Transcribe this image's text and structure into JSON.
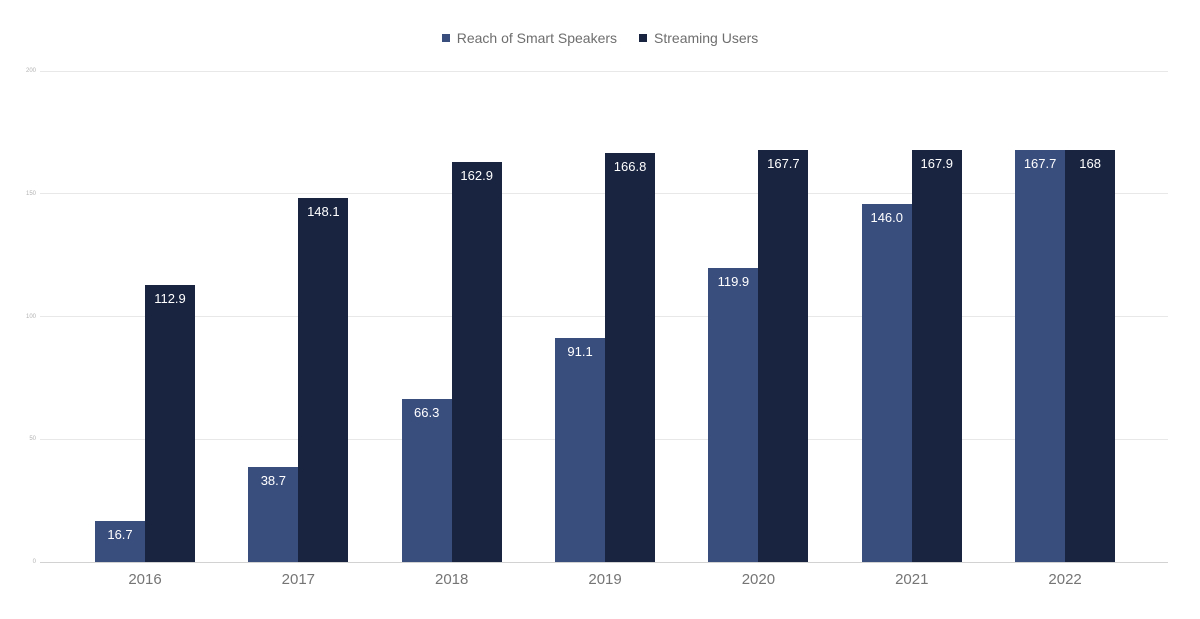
{
  "chart_data": {
    "type": "bar",
    "title": "",
    "categories": [
      "2016",
      "2017",
      "2018",
      "2019",
      "2020",
      "2021",
      "2022"
    ],
    "series": [
      {
        "name": "Reach of Smart Speakers",
        "color": "#3A4E7E",
        "values": [
          16.7,
          38.7,
          66.3,
          91.1,
          119.9,
          146.0,
          167.7
        ],
        "labels": [
          "16.7",
          "38.7",
          "66.3",
          "91.1",
          "119.9",
          "146.0",
          "167.7"
        ]
      },
      {
        "name": "Streaming Users",
        "color": "#182440",
        "values": [
          112.9,
          148.1,
          162.9,
          166.8,
          167.7,
          167.9,
          168
        ],
        "labels": [
          "112.9",
          "148.1",
          "162.9",
          "166.8",
          "167.7",
          "167.9",
          "168"
        ]
      }
    ],
    "xlabel": "",
    "ylabel": "",
    "ylim": [
      0,
      200
    ],
    "yticks": [
      0,
      50,
      100,
      150,
      200
    ],
    "ytick_labels": [
      "0",
      "50",
      "100",
      "150",
      "200"
    ],
    "grid": "horizontal",
    "legend_position": "top-center",
    "value_label_position": "inside-top",
    "colors": {
      "background": "#ffffff",
      "axis_text": "#757575",
      "ytick_text": "#b3b3b3",
      "legend_text": "#6e6e6e",
      "value_label_text": "#ffffff",
      "gridline": "#e8e8e8",
      "baseline": "#d2d2d2"
    }
  }
}
